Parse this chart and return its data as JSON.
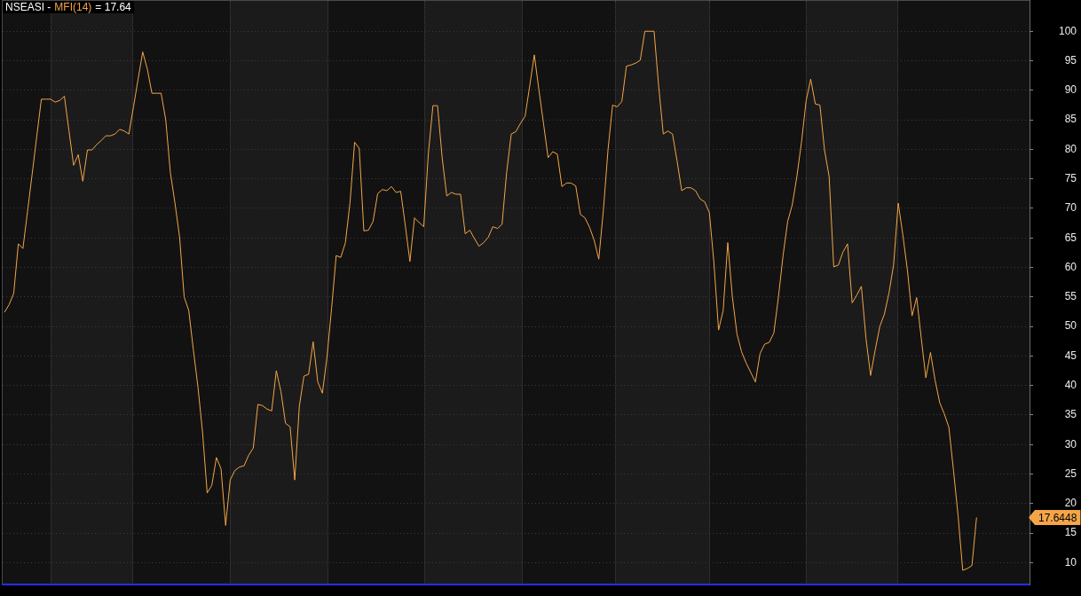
{
  "chart_data": {
    "type": "line",
    "title": "NSEASI -",
    "annotations": [
      "= 17.64",
      "17.6448"
    ],
    "legend": "top left",
    "tick_labels": "y",
    "grid": "y",
    "marker": "none",
    "ylim": [
      6.3,
      105.3
    ],
    "yticks": [
      10,
      15,
      20,
      25,
      30,
      35,
      40,
      45,
      50,
      55,
      60,
      65,
      70,
      75,
      80,
      85,
      90,
      95,
      100
    ],
    "categories": [
      null,
      null,
      null,
      null,
      null,
      null,
      null,
      null,
      null,
      null,
      null,
      null,
      null,
      null,
      null,
      null,
      null,
      null,
      null,
      null,
      null,
      null,
      null,
      null,
      null,
      null,
      null,
      null,
      null,
      null,
      null,
      null,
      null,
      null,
      null,
      null,
      null,
      null,
      null,
      null,
      null,
      null,
      null,
      null,
      null,
      null,
      null,
      null,
      null,
      null,
      null,
      null,
      null,
      null,
      null,
      null,
      null,
      null,
      null,
      null,
      null,
      null,
      null,
      null,
      null,
      null,
      null,
      null,
      null,
      null,
      null,
      null,
      null,
      null,
      null,
      null,
      null,
      null,
      null,
      null,
      null,
      null,
      null,
      null,
      null,
      null,
      null,
      null,
      null,
      null,
      null,
      null,
      null,
      null,
      null,
      null,
      null,
      null,
      null,
      null,
      null,
      null,
      null,
      null,
      null,
      null,
      null,
      null,
      null,
      null,
      null,
      null,
      null,
      null,
      null,
      null,
      null,
      null,
      null,
      null,
      null,
      null,
      null,
      null,
      null,
      null,
      null,
      null,
      null,
      null,
      null,
      null,
      null,
      null,
      null,
      null,
      null,
      null,
      null,
      null,
      null,
      null,
      null,
      null,
      null,
      null,
      null,
      null,
      null,
      null,
      null,
      null,
      null,
      null,
      null,
      null,
      null,
      null,
      null,
      null,
      null,
      null,
      null,
      null,
      null,
      null,
      null,
      null,
      null,
      null,
      null,
      null,
      null,
      null,
      null,
      null,
      null,
      null,
      null,
      null,
      null,
      null,
      null,
      null,
      null,
      null,
      null,
      null,
      null,
      null,
      null,
      null,
      null,
      null,
      null,
      null,
      null,
      null,
      null,
      null,
      null,
      null,
      null,
      null,
      null,
      null,
      null,
      null,
      null,
      null,
      null,
      null
    ],
    "series": [
      {
        "name": "MFI(14)",
        "color": "#f4a548",
        "values": [
          52.4,
          53.7,
          55.6,
          64.0,
          63.2,
          69.5,
          75.8,
          82.2,
          88.5,
          88.5,
          88.5,
          88.0,
          88.3,
          89.0,
          83.1,
          77.3,
          79.1,
          74.6,
          79.9,
          79.9,
          80.8,
          81.5,
          82.3,
          82.3,
          82.6,
          83.4,
          83.1,
          82.6,
          87.2,
          91.9,
          96.5,
          93.6,
          89.5,
          89.5,
          89.5,
          85.0,
          76.1,
          70.9,
          65.2,
          55.0,
          52.7,
          46.0,
          39.7,
          32.0,
          21.8,
          23.1,
          27.8,
          25.9,
          16.3,
          24.0,
          25.6,
          26.2,
          26.4,
          28.2,
          29.4,
          36.8,
          36.6,
          36.0,
          35.7,
          42.5,
          39.0,
          33.6,
          33.0,
          24.0,
          36.5,
          41.6,
          41.9,
          47.4,
          40.6,
          38.7,
          44.8,
          53.1,
          62.0,
          61.7,
          64.2,
          71.0,
          81.2,
          80.2,
          66.2,
          66.3,
          67.8,
          72.5,
          73.2,
          73.0,
          73.7,
          72.7,
          72.9,
          67.1,
          61.0,
          68.4,
          67.6,
          66.9,
          79.2,
          87.4,
          87.4,
          78.6,
          72.1,
          72.7,
          72.4,
          72.4,
          65.7,
          66.3,
          64.9,
          63.6,
          64.2,
          65.1,
          66.9,
          66.6,
          67.3,
          76.1,
          82.6,
          83.0,
          84.4,
          85.6,
          90.7,
          96.0,
          90.1,
          84.4,
          78.6,
          79.6,
          79.2,
          73.7,
          74.3,
          74.3,
          73.8,
          69.0,
          68.4,
          66.8,
          64.6,
          61.4,
          69.7,
          79.9,
          87.5,
          87.2,
          88.1,
          94.1,
          94.3,
          94.6,
          95.1,
          100,
          100,
          100,
          90.7,
          82.6,
          83.1,
          82.6,
          78.0,
          73.0,
          73.5,
          73.5,
          73.0,
          71.6,
          71.1,
          69.3,
          60.7,
          49.4,
          52.7,
          64.2,
          55.0,
          48.7,
          45.7,
          43.8,
          42.2,
          40.6,
          45.4,
          47.0,
          47.3,
          48.9,
          55.0,
          62.0,
          67.8,
          70.6,
          75.4,
          81.2,
          88.2,
          91.9,
          87.7,
          87.5,
          79.9,
          75.4,
          60.1,
          60.4,
          62.6,
          64.0,
          54.0,
          55.3,
          56.8,
          48.0,
          41.7,
          46.0,
          50.0,
          52.1,
          55.7,
          60.5,
          70.9,
          65.5,
          59.5,
          51.8,
          54.9,
          48.0,
          41.3,
          45.6,
          40.9,
          37.1,
          35.2,
          32.9,
          25.6,
          17.9,
          8.7,
          9.0,
          9.5,
          17.6448
        ]
      }
    ]
  }
}
